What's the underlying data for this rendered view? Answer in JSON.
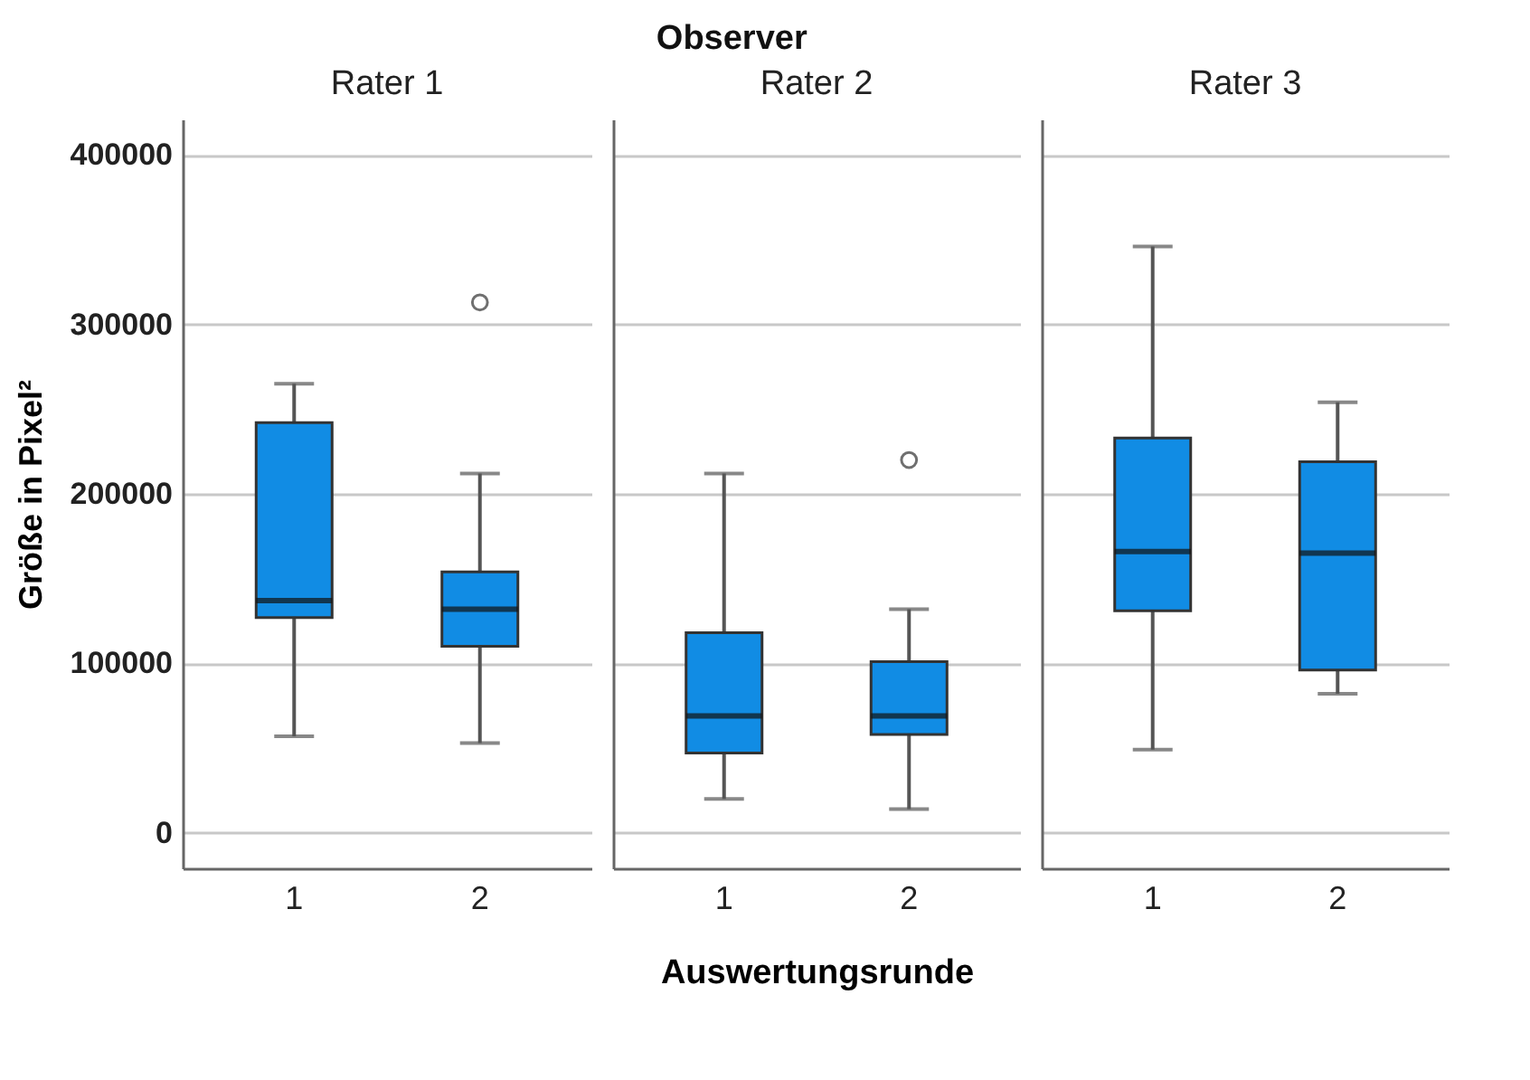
{
  "chart_data": [
    {
      "type": "box",
      "title": "Rater 1",
      "ylabel": "Größe in Pixel²",
      "categories": [
        "1",
        "2"
      ],
      "color": "#118ce4",
      "ylim": [
        -21000,
        421000
      ],
      "yticks": [
        0,
        100000,
        200000,
        300000,
        400000
      ],
      "grid": "y",
      "boxes": [
        {
          "low": 57000,
          "q1": 127000,
          "median": 137000,
          "q3": 242000,
          "high": 265000
        },
        {
          "low": 53000,
          "q1": 110000,
          "median": 132000,
          "q3": 154000,
          "high": 212000,
          "outliers": [
            313000
          ]
        }
      ]
    },
    {
      "type": "box",
      "title": "Rater 2",
      "xlabel": "Auswertungsrunde",
      "annotations": [
        "Observer"
      ],
      "categories": [
        "1",
        "2"
      ],
      "color": "#118ce4",
      "ylim": [
        -21000,
        421000
      ],
      "yticks": [
        0,
        100000,
        200000,
        300000,
        400000
      ],
      "grid": "y",
      "tick_labels": "x",
      "boxes": [
        {
          "low": 20000,
          "q1": 47000,
          "median": 69000,
          "q3": 118000,
          "high": 212000
        },
        {
          "low": 14000,
          "q1": 58000,
          "median": 69000,
          "q3": 101000,
          "high": 132000,
          "outliers": [
            220000
          ]
        }
      ]
    },
    {
      "type": "box",
      "title": "Rater 3",
      "categories": [
        "1",
        "2"
      ],
      "color": "#118ce4",
      "ylim": [
        -21000,
        421000
      ],
      "yticks": [
        0,
        100000,
        200000,
        300000,
        400000
      ],
      "grid": "y",
      "tick_labels": "x",
      "boxes": [
        {
          "low": 49000,
          "q1": 131000,
          "median": 166000,
          "q3": 233000,
          "high": 346000
        },
        {
          "low": 82000,
          "q1": 96000,
          "median": 165000,
          "q3": 219000,
          "high": 254000
        }
      ]
    }
  ]
}
